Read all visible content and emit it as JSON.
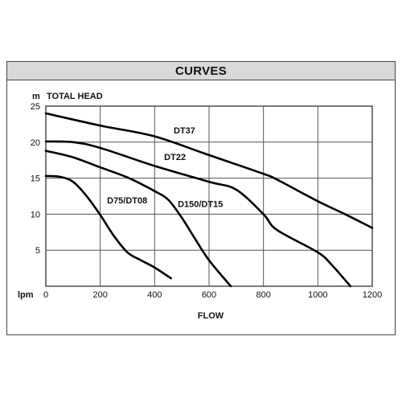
{
  "header": {
    "title": "CURVES"
  },
  "chart_data": {
    "type": "line",
    "title": "CURVES",
    "ylabel_unit": "m",
    "ylabel": "TOTAL HEAD",
    "xlabel_unit": "lpm",
    "xlabel": "FLOW",
    "xlim": [
      0,
      1200
    ],
    "ylim": [
      0,
      25
    ],
    "x_ticks": [
      0,
      200,
      400,
      600,
      800,
      1000,
      1200
    ],
    "y_ticks": [
      5,
      10,
      15,
      20,
      25
    ],
    "grid": true,
    "series": [
      {
        "name": "DT37",
        "points": [
          [
            0,
            24
          ],
          [
            200,
            22.3
          ],
          [
            400,
            20.8
          ],
          [
            600,
            18.2
          ],
          [
            800,
            15.6
          ],
          [
            850,
            14.8
          ],
          [
            1000,
            11.8
          ],
          [
            1100,
            10
          ],
          [
            1200,
            8.1
          ]
        ]
      },
      {
        "name": "DT22",
        "points": [
          [
            0,
            20.1
          ],
          [
            100,
            20
          ],
          [
            200,
            19.2
          ],
          [
            400,
            16.7
          ],
          [
            600,
            14.5
          ],
          [
            700,
            13.4
          ],
          [
            800,
            10
          ],
          [
            850,
            7.8
          ],
          [
            1000,
            4.7
          ],
          [
            1050,
            3
          ],
          [
            1120,
            0
          ]
        ]
      },
      {
        "name": "D150/DT15",
        "points": [
          [
            0,
            18.8
          ],
          [
            100,
            17.9
          ],
          [
            200,
            16.5
          ],
          [
            300,
            15.1
          ],
          [
            400,
            13.2
          ],
          [
            450,
            12
          ],
          [
            500,
            9.5
          ],
          [
            550,
            6.5
          ],
          [
            600,
            3.6
          ],
          [
            680,
            0
          ]
        ]
      },
      {
        "name": "D75/DT08",
        "points": [
          [
            0,
            15.3
          ],
          [
            50,
            15.2
          ],
          [
            100,
            14.5
          ],
          [
            150,
            12.5
          ],
          [
            200,
            9.9
          ],
          [
            250,
            7
          ],
          [
            300,
            4.7
          ],
          [
            350,
            3.6
          ],
          [
            400,
            2.6
          ],
          [
            460,
            1.1
          ]
        ]
      }
    ],
    "annotations": [
      {
        "text": "DT37",
        "x": 470,
        "y": 21.2
      },
      {
        "text": "DT22",
        "x": 435,
        "y": 17.5
      },
      {
        "text": "D75/DT08",
        "x": 225,
        "y": 11.5
      },
      {
        "text": "D150/DT15",
        "x": 485,
        "y": 11.0
      }
    ]
  }
}
